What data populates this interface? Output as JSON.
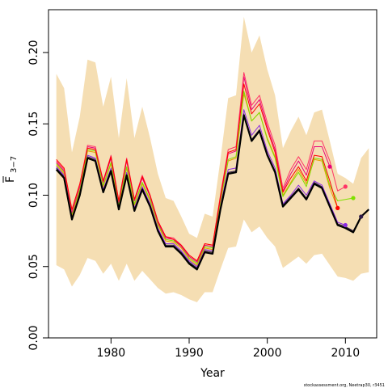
{
  "chart_data": {
    "type": "line",
    "xlabel": "Year",
    "ylabel_main": "F",
    "ylabel_sub": "3−7",
    "xlim": [
      1972,
      2014
    ],
    "ylim": [
      0,
      0.23
    ],
    "xticks": [
      1980,
      1990,
      2000,
      2010
    ],
    "xtick_labels": [
      "1980",
      "1990",
      "2000",
      "2010"
    ],
    "yticks": [
      0,
      0.05,
      0.1,
      0.15,
      0.2
    ],
    "ytick_labels": [
      "0.00",
      "0.05",
      "0.10",
      "0.15",
      "0.20"
    ],
    "band_color": "#f5deb3",
    "years": [
      1973,
      1974,
      1975,
      1976,
      1977,
      1978,
      1979,
      1980,
      1981,
      1982,
      1983,
      1984,
      1985,
      1986,
      1987,
      1988,
      1989,
      1990,
      1991,
      1992,
      1993,
      1994,
      1995,
      1996,
      1997,
      1998,
      1999,
      2000,
      2001,
      2002,
      2003,
      2004,
      2005,
      2006,
      2007,
      2008,
      2009,
      2010,
      2011,
      2012,
      2013
    ],
    "band_upper": [
      0.185,
      0.175,
      0.13,
      0.155,
      0.195,
      0.193,
      0.162,
      0.183,
      0.14,
      0.182,
      0.14,
      0.162,
      0.14,
      0.115,
      0.098,
      0.096,
      0.085,
      0.073,
      0.07,
      0.087,
      0.085,
      0.125,
      0.168,
      0.17,
      0.225,
      0.2,
      0.212,
      0.188,
      0.17,
      0.133,
      0.145,
      0.155,
      0.142,
      0.158,
      0.16,
      0.138,
      0.115,
      0.112,
      0.108,
      0.126,
      0.133
    ],
    "band_lower": [
      0.051,
      0.048,
      0.036,
      0.044,
      0.056,
      0.054,
      0.045,
      0.052,
      0.04,
      0.052,
      0.04,
      0.047,
      0.041,
      0.035,
      0.031,
      0.032,
      0.03,
      0.027,
      0.025,
      0.032,
      0.032,
      0.048,
      0.063,
      0.064,
      0.083,
      0.074,
      0.078,
      0.07,
      0.064,
      0.049,
      0.053,
      0.057,
      0.052,
      0.058,
      0.059,
      0.051,
      0.043,
      0.042,
      0.04,
      0.045,
      0.046
    ],
    "series": [
      {
        "color": "#000000",
        "width": 2.2,
        "values": [
          0.118,
          0.112,
          0.083,
          0.1,
          0.126,
          0.124,
          0.102,
          0.117,
          0.09,
          0.114,
          0.089,
          0.104,
          0.092,
          0.075,
          0.064,
          0.064,
          0.059,
          0.052,
          0.048,
          0.06,
          0.059,
          0.09,
          0.115,
          0.116,
          0.156,
          0.138,
          0.145,
          0.128,
          0.116,
          0.092,
          0.098,
          0.104,
          0.097,
          0.108,
          0.105,
          0.092,
          0.079,
          0.077,
          0.074,
          0.085,
          0.09
        ]
      },
      {
        "color": "#2e1a47",
        "width": 1.0,
        "values": [
          0.119,
          0.113,
          0.084,
          0.101,
          0.127,
          0.125,
          0.103,
          0.118,
          0.091,
          0.115,
          0.09,
          0.105,
          0.093,
          0.076,
          0.065,
          0.065,
          0.06,
          0.053,
          0.049,
          0.061,
          0.06,
          0.091,
          0.116,
          0.117,
          0.157,
          0.139,
          0.146,
          0.129,
          0.117,
          0.093,
          0.099,
          0.105,
          0.098,
          0.109,
          0.106,
          0.093,
          0.08,
          0.078,
          0.075,
          0.085
        ]
      },
      {
        "color": "#8a2be2",
        "width": 1.0,
        "values": [
          0.12,
          0.114,
          0.085,
          0.102,
          0.128,
          0.126,
          0.104,
          0.119,
          0.092,
          0.116,
          0.091,
          0.106,
          0.094,
          0.077,
          0.066,
          0.066,
          0.061,
          0.054,
          0.05,
          0.062,
          0.061,
          0.093,
          0.118,
          0.119,
          0.16,
          0.142,
          0.149,
          0.131,
          0.119,
          0.094,
          0.1,
          0.107,
          0.1,
          0.11,
          0.107,
          0.094,
          0.081,
          0.079
        ]
      },
      {
        "color": "#e6a000",
        "width": 1.0,
        "values": [
          0.121,
          0.115,
          0.086,
          0.103,
          0.131,
          0.13,
          0.106,
          0.122,
          0.093,
          0.119,
          0.093,
          0.108,
          0.096,
          0.079,
          0.068,
          0.067,
          0.063,
          0.055,
          0.051,
          0.063,
          0.062,
          0.095,
          0.124,
          0.126,
          0.171,
          0.152,
          0.158,
          0.14,
          0.127,
          0.1,
          0.109,
          0.118,
          0.108,
          0.125,
          0.124,
          0.105,
          0.091
        ]
      },
      {
        "color": "#7fe000",
        "width": 1.0,
        "values": [
          0.122,
          0.116,
          0.087,
          0.104,
          0.132,
          0.131,
          0.107,
          0.123,
          0.094,
          0.12,
          0.094,
          0.109,
          0.097,
          0.08,
          0.069,
          0.068,
          0.064,
          0.056,
          0.052,
          0.064,
          0.063,
          0.096,
          0.125,
          0.127,
          0.173,
          0.152,
          0.158,
          0.139,
          0.126,
          0.099,
          0.108,
          0.116,
          0.106,
          0.126,
          0.125,
          0.107,
          0.096,
          0.097,
          0.098
        ]
      },
      {
        "color": "#e8007a",
        "width": 1.0,
        "values": [
          0.123,
          0.117,
          0.088,
          0.106,
          0.134,
          0.133,
          0.109,
          0.126,
          0.095,
          0.124,
          0.096,
          0.112,
          0.099,
          0.081,
          0.07,
          0.069,
          0.064,
          0.057,
          0.053,
          0.065,
          0.064,
          0.098,
          0.129,
          0.131,
          0.183,
          0.16,
          0.167,
          0.148,
          0.132,
          0.103,
          0.115,
          0.124,
          0.114,
          0.134,
          0.134,
          0.12
        ]
      },
      {
        "color": "#ff3366",
        "width": 1.0,
        "values": [
          0.124,
          0.118,
          0.089,
          0.107,
          0.135,
          0.134,
          0.11,
          0.128,
          0.096,
          0.126,
          0.097,
          0.114,
          0.1,
          0.082,
          0.071,
          0.07,
          0.065,
          0.058,
          0.054,
          0.066,
          0.065,
          0.1,
          0.132,
          0.134,
          0.186,
          0.163,
          0.17,
          0.151,
          0.135,
          0.105,
          0.118,
          0.127,
          0.118,
          0.138,
          0.138,
          0.124,
          0.103,
          0.106
        ]
      },
      {
        "color": "#ff0000",
        "width": 1.0,
        "values": [
          0.125,
          0.119,
          0.09,
          0.108,
          0.133,
          0.132,
          0.11,
          0.127,
          0.096,
          0.125,
          0.097,
          0.113,
          0.1,
          0.082,
          0.071,
          0.069,
          0.065,
          0.058,
          0.054,
          0.066,
          0.065,
          0.099,
          0.13,
          0.132,
          0.178,
          0.157,
          0.164,
          0.146,
          0.13,
          0.102,
          0.112,
          0.12,
          0.11,
          0.128,
          0.127,
          0.11,
          0.091
        ]
      }
    ]
  },
  "footnote": "stockassessment.org, Neetrap30, r3451"
}
